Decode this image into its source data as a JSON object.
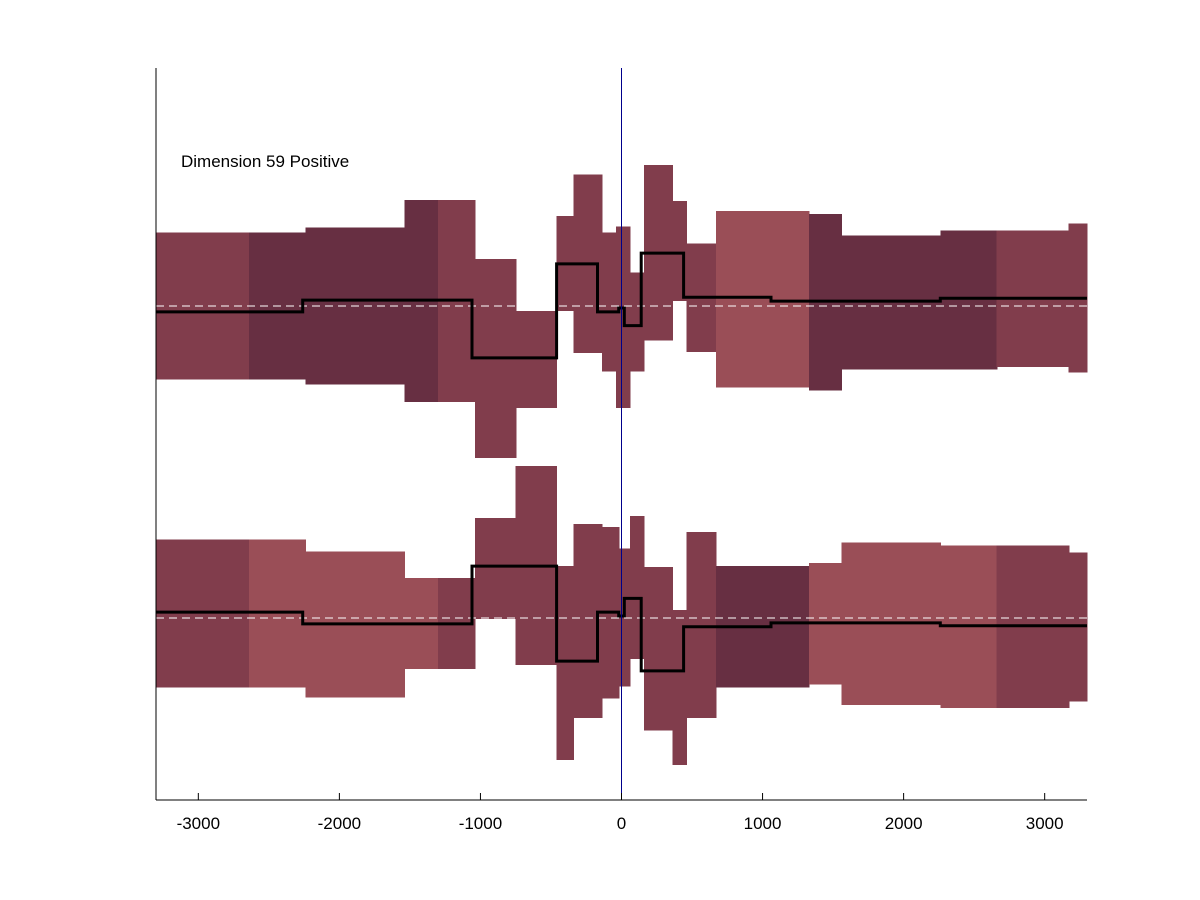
{
  "chart_data": {
    "type": "area",
    "annotation": "Dimension 59 Positive",
    "xlim": [
      -3300,
      3300
    ],
    "xticks": [
      -3000,
      -2000,
      -1000,
      0,
      1000,
      2000,
      3000
    ],
    "xtick_labels": [
      "-3000",
      "-2000",
      "-1000",
      "0",
      "1000",
      "2000",
      "3000"
    ],
    "vertical_marker_x": 0,
    "colors": {
      "light": "#9A4E57",
      "medium": "#813D4C",
      "dark": "#672F42",
      "line": "#000000",
      "marker": "#00008B",
      "baseline": "#ffffff"
    },
    "panels": [
      {
        "name": "upper-panel",
        "bins": [
          {
            "x0": -3300,
            "x1": -2640,
            "lo": -0.75,
            "hi": 0.75,
            "shade": "medium"
          },
          {
            "x0": -2640,
            "x1": -2240,
            "lo": -0.75,
            "hi": 0.75,
            "shade": "dark"
          },
          {
            "x0": -2240,
            "x1": -1540,
            "lo": -0.8,
            "hi": 0.8,
            "shade": "dark"
          },
          {
            "x0": -1540,
            "x1": -1300,
            "lo": -0.98,
            "hi": 1.08,
            "shade": "dark"
          },
          {
            "x0": -1300,
            "x1": -1040,
            "lo": -0.98,
            "hi": 1.08,
            "shade": "medium"
          },
          {
            "x0": -1040,
            "x1": -750,
            "lo": -1.55,
            "hi": 0.48,
            "shade": "medium"
          },
          {
            "x0": -750,
            "x1": -460,
            "lo": -1.04,
            "hi": -0.05,
            "shade": "medium"
          },
          {
            "x0": -460,
            "x1": -340,
            "lo": -0.05,
            "hi": 0.92,
            "shade": "medium"
          },
          {
            "x0": -340,
            "x1": -140,
            "lo": -0.48,
            "hi": 1.34,
            "shade": "medium"
          },
          {
            "x0": -140,
            "x1": -40,
            "lo": -0.67,
            "hi": 0.75,
            "shade": "medium"
          },
          {
            "x0": -40,
            "x1": 60,
            "lo": -1.04,
            "hi": 0.81,
            "shade": "medium"
          },
          {
            "x0": 60,
            "x1": 160,
            "lo": -0.67,
            "hi": 0.34,
            "shade": "medium"
          },
          {
            "x0": 160,
            "x1": 360,
            "lo": -0.35,
            "hi": 1.44,
            "shade": "medium"
          },
          {
            "x0": 360,
            "x1": 460,
            "lo": 0.05,
            "hi": 1.07,
            "shade": "medium"
          },
          {
            "x0": 460,
            "x1": 670,
            "lo": -0.47,
            "hi": 0.64,
            "shade": "medium"
          },
          {
            "x0": 670,
            "x1": 1330,
            "lo": -0.83,
            "hi": 0.97,
            "shade": "light"
          },
          {
            "x0": 1330,
            "x1": 1560,
            "lo": -0.86,
            "hi": 0.94,
            "shade": "dark"
          },
          {
            "x0": 1560,
            "x1": 2260,
            "lo": -0.65,
            "hi": 0.72,
            "shade": "dark"
          },
          {
            "x0": 2260,
            "x1": 2660,
            "lo": -0.65,
            "hi": 0.77,
            "shade": "dark"
          },
          {
            "x0": 2660,
            "x1": 3170,
            "lo": -0.62,
            "hi": 0.77,
            "shade": "medium"
          },
          {
            "x0": 3170,
            "x1": 3300,
            "lo": -0.68,
            "hi": 0.84,
            "shade": "medium"
          }
        ],
        "line": [
          {
            "x0": -3300,
            "x1": -2260,
            "y": -0.06
          },
          {
            "x0": -2260,
            "x1": -1060,
            "y": 0.06
          },
          {
            "x0": -1060,
            "x1": -460,
            "y": -0.53
          },
          {
            "x0": -460,
            "x1": -170,
            "y": 0.43
          },
          {
            "x0": -170,
            "x1": -20,
            "y": -0.06
          },
          {
            "x0": -20,
            "x1": 20,
            "y": -0.02
          },
          {
            "x0": 20,
            "x1": 140,
            "y": -0.2
          },
          {
            "x0": 140,
            "x1": 440,
            "y": 0.54
          },
          {
            "x0": 440,
            "x1": 1060,
            "y": 0.09
          },
          {
            "x0": 1060,
            "x1": 2260,
            "y": 0.05
          },
          {
            "x0": 2260,
            "x1": 3300,
            "y": 0.08
          }
        ]
      },
      {
        "name": "lower-panel",
        "bins": [
          {
            "x0": -3300,
            "x1": -2640,
            "lo": -0.71,
            "hi": 0.8,
            "shade": "medium"
          },
          {
            "x0": -2640,
            "x1": -2240,
            "lo": -0.71,
            "hi": 0.8,
            "shade": "light"
          },
          {
            "x0": -2240,
            "x1": -1540,
            "lo": -0.81,
            "hi": 0.68,
            "shade": "light"
          },
          {
            "x0": -1540,
            "x1": -1300,
            "lo": -0.52,
            "hi": 0.41,
            "shade": "light"
          },
          {
            "x0": -1300,
            "x1": -1040,
            "lo": -0.52,
            "hi": 0.41,
            "shade": "medium"
          },
          {
            "x0": -1040,
            "x1": -750,
            "lo": -0.01,
            "hi": 1.02,
            "shade": "medium"
          },
          {
            "x0": -750,
            "x1": -460,
            "lo": -0.48,
            "hi": 1.55,
            "shade": "medium"
          },
          {
            "x0": -460,
            "x1": -340,
            "lo": -1.45,
            "hi": 0.53,
            "shade": "medium"
          },
          {
            "x0": -340,
            "x1": -140,
            "lo": -1.02,
            "hi": 0.96,
            "shade": "medium"
          },
          {
            "x0": -140,
            "x1": -20,
            "lo": -0.82,
            "hi": 0.93,
            "shade": "medium"
          },
          {
            "x0": -20,
            "x1": 60,
            "lo": -0.7,
            "hi": 0.71,
            "shade": "medium"
          },
          {
            "x0": 60,
            "x1": 160,
            "lo": -0.42,
            "hi": 1.04,
            "shade": "medium"
          },
          {
            "x0": 160,
            "x1": 360,
            "lo": -1.15,
            "hi": 0.52,
            "shade": "medium"
          },
          {
            "x0": 360,
            "x1": 460,
            "lo": -1.5,
            "hi": 0.08,
            "shade": "medium"
          },
          {
            "x0": 460,
            "x1": 670,
            "lo": -1.02,
            "hi": 0.88,
            "shade": "medium"
          },
          {
            "x0": 670,
            "x1": 1330,
            "lo": -0.71,
            "hi": 0.53,
            "shade": "dark"
          },
          {
            "x0": 1330,
            "x1": 1560,
            "lo": -0.68,
            "hi": 0.56,
            "shade": "light"
          },
          {
            "x0": 1560,
            "x1": 2260,
            "lo": -0.89,
            "hi": 0.77,
            "shade": "light"
          },
          {
            "x0": 2260,
            "x1": 2660,
            "lo": -0.92,
            "hi": 0.74,
            "shade": "light"
          },
          {
            "x0": 2660,
            "x1": 3170,
            "lo": -0.92,
            "hi": 0.74,
            "shade": "medium"
          },
          {
            "x0": 3170,
            "x1": 3300,
            "lo": -0.85,
            "hi": 0.67,
            "shade": "medium"
          }
        ],
        "line": [
          {
            "x0": -3300,
            "x1": -2260,
            "y": 0.06
          },
          {
            "x0": -2260,
            "x1": -1060,
            "y": -0.06
          },
          {
            "x0": -1060,
            "x1": -460,
            "y": 0.53
          },
          {
            "x0": -460,
            "x1": -170,
            "y": -0.44
          },
          {
            "x0": -170,
            "x1": -20,
            "y": 0.06
          },
          {
            "x0": -20,
            "x1": 20,
            "y": 0.02
          },
          {
            "x0": 20,
            "x1": 140,
            "y": 0.2
          },
          {
            "x0": 140,
            "x1": 440,
            "y": -0.54
          },
          {
            "x0": 440,
            "x1": 1060,
            "y": -0.09
          },
          {
            "x0": 1060,
            "x1": 2260,
            "y": -0.05
          },
          {
            "x0": 2260,
            "x1": 3300,
            "y": -0.08
          }
        ]
      }
    ]
  }
}
